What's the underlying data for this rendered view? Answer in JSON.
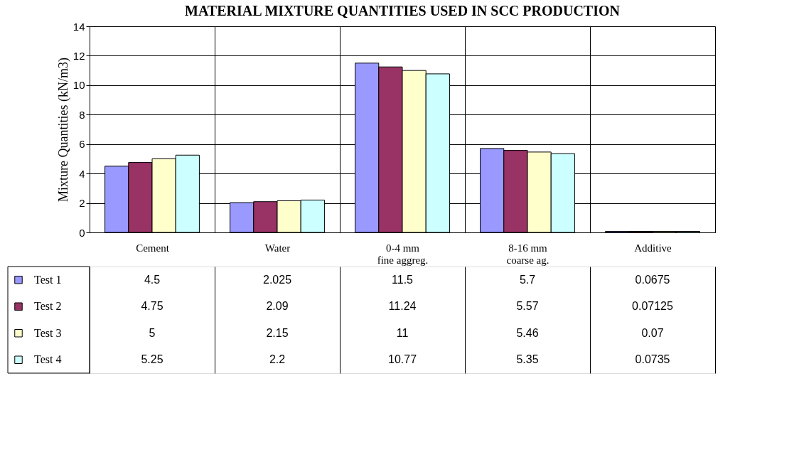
{
  "chart_data": {
    "type": "bar",
    "title": "MATERIAL MIXTURE QUANTITIES USED IN SCC PRODUCTION",
    "ylabel": "Mixture Quantities (kN/m3)",
    "categories": [
      "Cement",
      "Water",
      "0-4 mm\nfine aggreg.",
      "8-16 mm\ncoarse ag.",
      "Additive"
    ],
    "series": [
      {
        "name": "Test 1",
        "color": "#9999ff",
        "values": [
          4.5,
          2.025,
          11.5,
          5.7,
          0.0675
        ]
      },
      {
        "name": "Test 2",
        "color": "#993366",
        "values": [
          4.75,
          2.09,
          11.24,
          5.57,
          0.07125
        ]
      },
      {
        "name": "Test 3",
        "color": "#ffffcc",
        "values": [
          5,
          2.15,
          11,
          5.46,
          0.07
        ]
      },
      {
        "name": "Test 4",
        "color": "#ccffff",
        "values": [
          5.25,
          2.2,
          10.77,
          5.35,
          0.0735
        ]
      }
    ],
    "ylim": [
      0,
      14
    ],
    "yticks": [
      0,
      2,
      4,
      6,
      8,
      10,
      12,
      14
    ],
    "grid": true,
    "legend": "bottom",
    "data_labels": true
  }
}
